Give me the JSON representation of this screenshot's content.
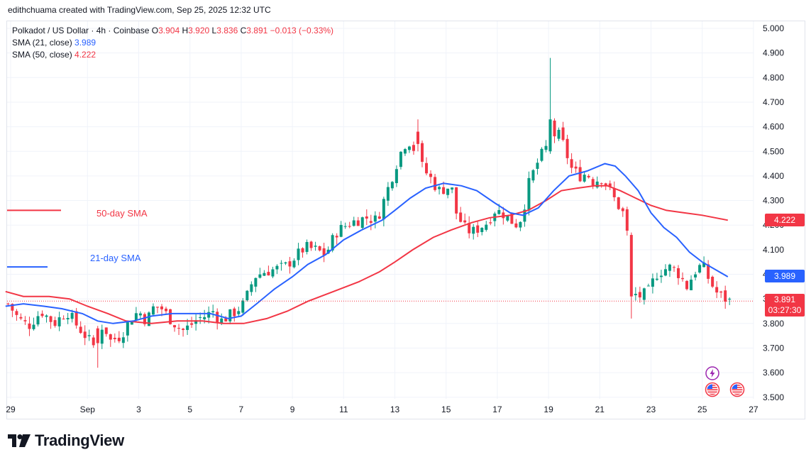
{
  "header": {
    "attribution": "edithchuama created with TradingView.com, Sep 25, 2025 12:32 UTC"
  },
  "legend": {
    "symbol": "Polkadot / US Dollar · 4h · Coinbase",
    "ohlc": [
      {
        "k": "O",
        "v": "3.904"
      },
      {
        "k": "H",
        "v": "3.920"
      },
      {
        "k": "L",
        "v": "3.836"
      },
      {
        "k": "C",
        "v": "3.891"
      }
    ],
    "change": "−0.013 (−0.33%)",
    "sma21_label": "SMA (21, close)",
    "sma21_value": "3.989",
    "sma50_label": "SMA (50, close)",
    "sma50_value": "4.222"
  },
  "annotations": {
    "sma50": "50-day SMA",
    "sma21": "21-day SMA"
  },
  "price_tags": {
    "sma50": "4.222",
    "sma21": "3.989",
    "last_price": "3.891",
    "countdown": "03:27:30"
  },
  "branding": {
    "logo_text": "TradingView"
  },
  "colors": {
    "up": "#089981",
    "down": "#f23645",
    "sma21": "#2962ff",
    "sma50": "#f23645",
    "grid": "#f0f3fa"
  },
  "icons": [
    "lightning-event-icon",
    "us-flag-event-icon",
    "us-flag-event-icon"
  ],
  "chart_data": {
    "type": "candlestick",
    "title": "Polkadot / US Dollar · 4h · Coinbase",
    "ylim": [
      3.45,
      5.05
    ],
    "y_ticks": [
      "5.000",
      "4.900",
      "4.800",
      "4.700",
      "4.600",
      "4.500",
      "4.400",
      "4.300",
      "4.200",
      "4.100",
      "4.000",
      "3.900",
      "3.800",
      "3.700",
      "3.600",
      "3.500"
    ],
    "x_ticks": [
      "29",
      "Sep",
      "3",
      "5",
      "7",
      "9",
      "11",
      "13",
      "15",
      "17",
      "19",
      "21",
      "23",
      "25",
      "27"
    ],
    "x_tick_day": [
      29,
      32,
      34,
      36,
      38,
      40,
      42,
      44,
      46,
      48,
      50,
      52,
      54,
      56,
      58
    ],
    "last_price": 3.891,
    "close_path": [
      [
        28.9,
        3.88
      ],
      [
        29.3,
        3.82
      ],
      [
        29.7,
        3.79
      ],
      [
        30.2,
        3.85
      ],
      [
        30.7,
        3.8
      ],
      [
        31.2,
        3.85
      ],
      [
        31.6,
        3.79
      ],
      [
        32.0,
        3.74
      ],
      [
        32.3,
        3.7
      ],
      [
        32.6,
        3.8
      ],
      [
        32.9,
        3.73
      ],
      [
        33.3,
        3.75
      ],
      [
        33.7,
        3.82
      ],
      [
        34.0,
        3.85
      ],
      [
        34.3,
        3.81
      ],
      [
        34.6,
        3.87
      ],
      [
        34.9,
        3.86
      ],
      [
        35.3,
        3.81
      ],
      [
        35.7,
        3.77
      ],
      [
        36.0,
        3.79
      ],
      [
        36.3,
        3.82
      ],
      [
        36.6,
        3.83
      ],
      [
        36.9,
        3.85
      ],
      [
        37.2,
        3.81
      ],
      [
        37.5,
        3.83
      ],
      [
        37.8,
        3.85
      ],
      [
        38.1,
        3.88
      ],
      [
        38.3,
        3.93
      ],
      [
        38.5,
        3.99
      ],
      [
        38.9,
        4.01
      ],
      [
        39.3,
        4.02
      ],
      [
        39.7,
        4.03
      ],
      [
        40.1,
        4.07
      ],
      [
        40.5,
        4.11
      ],
      [
        40.9,
        4.1
      ],
      [
        41.3,
        4.08
      ],
      [
        41.7,
        4.17
      ],
      [
        42.1,
        4.2
      ],
      [
        42.5,
        4.22
      ],
      [
        42.9,
        4.23
      ],
      [
        43.3,
        4.22
      ],
      [
        43.6,
        4.31
      ],
      [
        43.9,
        4.4
      ],
      [
        44.2,
        4.49
      ],
      [
        44.5,
        4.55
      ],
      [
        44.8,
        4.5
      ],
      [
        45.1,
        4.43
      ],
      [
        45.4,
        4.39
      ],
      [
        45.7,
        4.34
      ],
      [
        46.0,
        4.35
      ],
      [
        46.2,
        4.36
      ],
      [
        46.4,
        4.25
      ],
      [
        46.7,
        4.19
      ],
      [
        47.0,
        4.17
      ],
      [
        47.3,
        4.19
      ],
      [
        47.6,
        4.21
      ],
      [
        47.9,
        4.26
      ],
      [
        48.2,
        4.25
      ],
      [
        48.5,
        4.22
      ],
      [
        48.8,
        4.2
      ],
      [
        49.0,
        4.25
      ],
      [
        49.2,
        4.36
      ],
      [
        49.5,
        4.44
      ],
      [
        49.8,
        4.5
      ],
      [
        50.1,
        4.54
      ],
      [
        50.3,
        4.58
      ],
      [
        50.5,
        4.55
      ],
      [
        50.7,
        4.49
      ],
      [
        50.9,
        4.43
      ],
      [
        51.2,
        4.4
      ],
      [
        51.5,
        4.41
      ],
      [
        51.8,
        4.37
      ],
      [
        52.0,
        4.4
      ],
      [
        52.3,
        4.36
      ],
      [
        52.6,
        4.3
      ],
      [
        52.9,
        4.25
      ],
      [
        53.1,
        4.15
      ],
      [
        53.3,
        3.92
      ],
      [
        53.6,
        3.91
      ],
      [
        53.9,
        3.93
      ],
      [
        54.2,
        4.0
      ],
      [
        54.5,
        4.02
      ],
      [
        54.8,
        4.03
      ],
      [
        55.1,
        4.0
      ],
      [
        55.4,
        3.95
      ],
      [
        55.7,
        4.01
      ],
      [
        56.0,
        4.04
      ],
      [
        56.3,
        3.97
      ],
      [
        56.6,
        3.92
      ],
      [
        56.9,
        3.9
      ],
      [
        57.1,
        3.89
      ]
    ],
    "candles": [
      {
        "d": 50.05,
        "o": 4.5,
        "h": 4.88,
        "l": 4.49,
        "c": 4.63
      },
      {
        "d": 53.15,
        "o": 4.16,
        "h": 4.17,
        "l": 3.82,
        "c": 3.91
      },
      {
        "d": 44.75,
        "o": 4.58,
        "h": 4.63,
        "l": 4.5,
        "c": 4.53
      },
      {
        "d": 32.3,
        "o": 3.78,
        "h": 3.79,
        "l": 3.62,
        "c": 3.72
      },
      {
        "d": 57.1,
        "o": 3.904,
        "h": 3.92,
        "l": 3.836,
        "c": 3.891
      }
    ],
    "sma21": {
      "name": "SMA (21, close)",
      "points": [
        [
          28.8,
          3.87
        ],
        [
          29.5,
          3.88
        ],
        [
          30.3,
          3.87
        ],
        [
          31.0,
          3.86
        ],
        [
          31.8,
          3.84
        ],
        [
          32.4,
          3.81
        ],
        [
          33.0,
          3.8
        ],
        [
          33.8,
          3.81
        ],
        [
          34.5,
          3.83
        ],
        [
          35.3,
          3.84
        ],
        [
          36.0,
          3.84
        ],
        [
          36.8,
          3.84
        ],
        [
          37.5,
          3.82
        ],
        [
          38.0,
          3.83
        ],
        [
          38.6,
          3.88
        ],
        [
          39.3,
          3.94
        ],
        [
          40.0,
          3.99
        ],
        [
          40.6,
          4.04
        ],
        [
          41.3,
          4.08
        ],
        [
          42.0,
          4.14
        ],
        [
          42.7,
          4.18
        ],
        [
          43.5,
          4.22
        ],
        [
          44.0,
          4.26
        ],
        [
          44.6,
          4.31
        ],
        [
          45.2,
          4.35
        ],
        [
          45.9,
          4.37
        ],
        [
          46.6,
          4.36
        ],
        [
          47.2,
          4.34
        ],
        [
          47.9,
          4.29
        ],
        [
          48.5,
          4.25
        ],
        [
          49.0,
          4.24
        ],
        [
          49.6,
          4.27
        ],
        [
          50.2,
          4.34
        ],
        [
          50.8,
          4.4
        ],
        [
          51.5,
          4.42
        ],
        [
          52.2,
          4.45
        ],
        [
          52.6,
          4.44
        ],
        [
          53.0,
          4.4
        ],
        [
          53.5,
          4.34
        ],
        [
          54.0,
          4.25
        ],
        [
          54.5,
          4.19
        ],
        [
          55.0,
          4.15
        ],
        [
          55.5,
          4.09
        ],
        [
          56.0,
          4.05
        ],
        [
          56.5,
          4.02
        ],
        [
          57.0,
          3.99
        ]
      ]
    },
    "sma50": {
      "name": "SMA (50, close)",
      "points": [
        [
          28.8,
          3.93
        ],
        [
          29.5,
          3.91
        ],
        [
          30.5,
          3.91
        ],
        [
          31.3,
          3.9
        ],
        [
          32.0,
          3.87
        ],
        [
          32.8,
          3.84
        ],
        [
          33.5,
          3.81
        ],
        [
          34.5,
          3.8
        ],
        [
          35.5,
          3.81
        ],
        [
          36.5,
          3.81
        ],
        [
          37.3,
          3.8
        ],
        [
          38.1,
          3.8
        ],
        [
          39.0,
          3.82
        ],
        [
          39.8,
          3.85
        ],
        [
          40.6,
          3.89
        ],
        [
          41.6,
          3.93
        ],
        [
          42.6,
          3.97
        ],
        [
          43.4,
          4.01
        ],
        [
          44.0,
          4.05
        ],
        [
          44.7,
          4.1
        ],
        [
          45.5,
          4.15
        ],
        [
          46.2,
          4.18
        ],
        [
          47.0,
          4.21
        ],
        [
          47.7,
          4.23
        ],
        [
          48.5,
          4.24
        ],
        [
          49.2,
          4.26
        ],
        [
          49.9,
          4.3
        ],
        [
          50.5,
          4.34
        ],
        [
          51.1,
          4.35
        ],
        [
          51.8,
          4.36
        ],
        [
          52.3,
          4.36
        ],
        [
          52.8,
          4.34
        ],
        [
          53.4,
          4.31
        ],
        [
          54.0,
          4.28
        ],
        [
          54.6,
          4.26
        ],
        [
          55.3,
          4.25
        ],
        [
          56.0,
          4.24
        ],
        [
          56.5,
          4.23
        ],
        [
          57.0,
          4.22
        ]
      ]
    },
    "legend_segments": {
      "sma50_level": 4.26,
      "sma21_level": 4.03
    }
  }
}
